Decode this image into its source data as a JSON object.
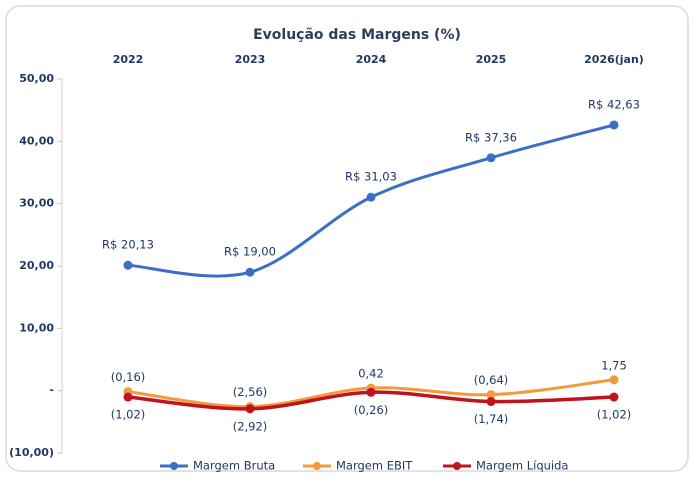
{
  "chart_data": {
    "type": "line",
    "title": "Evolução das Margens (%)",
    "categories": [
      "2022",
      "2023",
      "2024",
      "2025",
      "2026(jan)"
    ],
    "series": [
      {
        "name": "Margem Bruta",
        "color": "#3a6fc4",
        "values": [
          20.13,
          19.0,
          31.03,
          37.36,
          42.63
        ],
        "value_labels": [
          "R$ 20,13",
          "R$ 19,00",
          "R$ 31,03",
          "R$ 37,36",
          "R$ 42,63"
        ]
      },
      {
        "name": "Margem EBIT",
        "color": "#f39a3c",
        "values": [
          -0.16,
          -2.56,
          0.42,
          -0.64,
          1.75
        ],
        "value_labels": [
          "(0,16)",
          "(2,56)",
          "0,42",
          "(0,64)",
          "1,75"
        ]
      },
      {
        "name": "Margem Líquida",
        "color": "#c0141c",
        "values": [
          -1.02,
          -2.92,
          -0.26,
          -1.74,
          -1.02
        ],
        "value_labels": [
          "(1,02)",
          "(2,92)",
          "(0,26)",
          "(1,74)",
          "(1,02)"
        ]
      }
    ],
    "ylim": [
      -10,
      50
    ],
    "yticks": [
      {
        "value": -10,
        "label": "(10,00)"
      },
      {
        "value": 0,
        "label": "-"
      },
      {
        "value": 10,
        "label": "10,00"
      },
      {
        "value": 20,
        "label": "20,00"
      },
      {
        "value": 30,
        "label": "30,00"
      },
      {
        "value": 40,
        "label": "40,00"
      },
      {
        "value": 50,
        "label": "50,00"
      }
    ],
    "grid": false,
    "legend": "bottom",
    "smooth": true
  }
}
